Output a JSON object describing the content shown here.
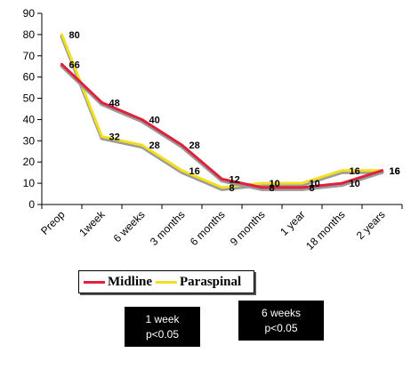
{
  "chart_data": {
    "type": "line",
    "categories": [
      "Preop",
      "1week",
      "6 weeks",
      "3 months",
      "6 months",
      "9 months",
      "1 year",
      "18 months",
      "2 years"
    ],
    "ylim": [
      0,
      90
    ],
    "yticks": [
      0,
      10,
      20,
      30,
      40,
      50,
      60,
      70,
      80,
      90
    ],
    "grid": false,
    "legend_position": "bottom-left",
    "series": [
      {
        "name": "Midline",
        "color": "#e0203c",
        "values": [
          66,
          48,
          40,
          28,
          12,
          8,
          8,
          10,
          16
        ],
        "value_labels": [
          "66",
          "48",
          "40",
          "28",
          "12",
          "8",
          "8",
          "10",
          "16"
        ]
      },
      {
        "name": "Paraspinal",
        "color": "#f2e020",
        "values": [
          80,
          32,
          28,
          16,
          8,
          10,
          10,
          16,
          16
        ],
        "value_labels": [
          "80",
          "32",
          "28",
          "16",
          "8",
          "10",
          "10",
          "16",
          "16"
        ]
      }
    ]
  },
  "legend": {
    "midline": "Midline",
    "paraspinal": "Paraspinal"
  },
  "notes": [
    {
      "line1": "1 week",
      "line2": "p<0.05"
    },
    {
      "line1": "6 weeks",
      "line2": "p<0.05"
    }
  ]
}
